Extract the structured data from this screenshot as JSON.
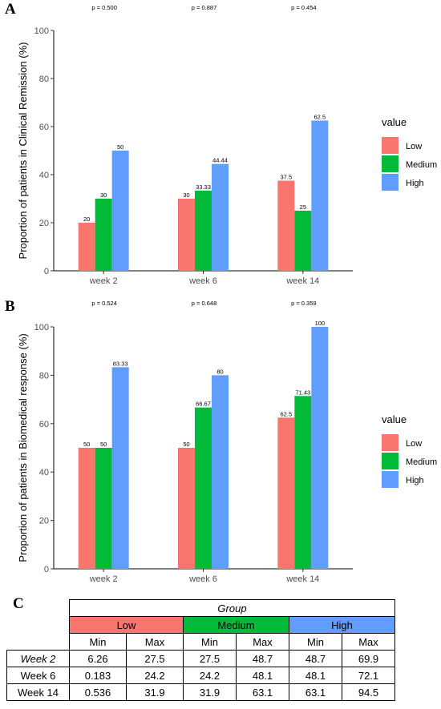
{
  "panels": {
    "A": "A",
    "B": "B",
    "C": "C"
  },
  "legend_title": "value",
  "chart_data": [
    {
      "type": "bar",
      "panel": "A",
      "categories": [
        "week 2",
        "week 6",
        "week 14"
      ],
      "series": [
        {
          "name": "Low",
          "values": [
            20,
            30,
            37.5
          ],
          "labels": [
            "20",
            "30",
            "37.5"
          ],
          "color": "#F8766D"
        },
        {
          "name": "Medium",
          "values": [
            30,
            33.33,
            25
          ],
          "labels": [
            "30",
            "33.33",
            "25"
          ],
          "color": "#00BA38"
        },
        {
          "name": "High",
          "values": [
            50,
            44.44,
            62.5
          ],
          "labels": [
            "50",
            "44.44",
            "62.5"
          ],
          "color": "#619CFF"
        }
      ],
      "annotations": [
        "p = 0.500",
        "p = 0.887",
        "p = 0.454"
      ],
      "ylabel": "Proportion of patients in Clinical Remission (%)",
      "xlabel": "",
      "ylim": [
        0,
        100
      ],
      "yticks": [
        0,
        20,
        40,
        60,
        80,
        100
      ],
      "grid": false,
      "legend_title": "value",
      "legend_position": "right"
    },
    {
      "type": "bar",
      "panel": "B",
      "categories": [
        "week 2",
        "week 6",
        "week 14"
      ],
      "series": [
        {
          "name": "Low",
          "values": [
            50,
            50,
            62.5
          ],
          "labels": [
            "50",
            "50",
            "62.5"
          ],
          "color": "#F8766D"
        },
        {
          "name": "Medium",
          "values": [
            50,
            66.67,
            71.43
          ],
          "labels": [
            "50",
            "66.67",
            "71.43"
          ],
          "color": "#00BA38"
        },
        {
          "name": "High",
          "values": [
            83.33,
            80,
            100
          ],
          "labels": [
            "83.33",
            "80",
            "100"
          ],
          "color": "#619CFF"
        }
      ],
      "annotations": [
        "p = 0.524",
        "p = 0.648",
        "p = 0.359"
      ],
      "ylabel": "Proportion of patients in Biomedical response (%)",
      "xlabel": "",
      "ylim": [
        0,
        100
      ],
      "yticks": [
        0,
        20,
        40,
        60,
        80,
        100
      ],
      "grid": false,
      "legend_title": "value",
      "legend_position": "right"
    }
  ],
  "table": {
    "group_title": "Group",
    "groups": [
      {
        "name": "Low",
        "color": "#F8766D"
      },
      {
        "name": "Medium",
        "color": "#00BA38"
      },
      {
        "name": "High",
        "color": "#619CFF"
      }
    ],
    "subheaders": [
      "Min",
      "Max",
      "Min",
      "Max",
      "Min",
      "Max"
    ],
    "rows": [
      {
        "label": "Week 2",
        "italic": true,
        "values": [
          "6.26",
          "27.5",
          "27.5",
          "48.7",
          "48.7",
          "69.9"
        ]
      },
      {
        "label": "Week 6",
        "italic": false,
        "values": [
          "0.183",
          "24.2",
          "24.2",
          "48.1",
          "48.1",
          "72.1"
        ]
      },
      {
        "label": "Week 14",
        "italic": false,
        "values": [
          "0.536",
          "31.9",
          "31.9",
          "63.1",
          "63.1",
          "94.5"
        ]
      }
    ]
  }
}
